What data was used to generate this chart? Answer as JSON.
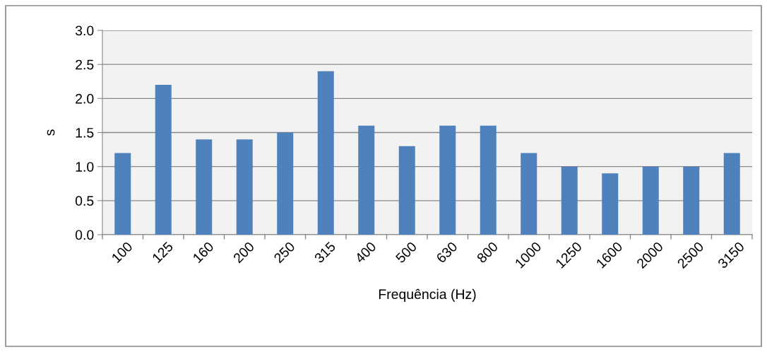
{
  "chart_data": {
    "type": "bar",
    "xlabel": "Frequência (Hz)",
    "ylabel": "s",
    "categories": [
      "100",
      "125",
      "160",
      "200",
      "250",
      "315",
      "400",
      "500",
      "630",
      "800",
      "1000",
      "1250",
      "1600",
      "2000",
      "2500",
      "3150"
    ],
    "values": [
      1.2,
      2.2,
      1.4,
      1.4,
      1.5,
      2.4,
      1.6,
      1.3,
      1.6,
      1.6,
      1.2,
      1.0,
      0.9,
      1.0,
      1.0,
      1.2
    ],
    "color": "#4f81bd",
    "ylim": [
      0,
      3.0
    ],
    "yticks": [
      {
        "value": 0,
        "label": "0.0"
      },
      {
        "value": 0.5,
        "label": "0.5"
      },
      {
        "value": 1.0,
        "label": "1.0"
      },
      {
        "value": 1.5,
        "label": "1.5"
      },
      {
        "value": 2.0,
        "label": "2.0"
      },
      {
        "value": 2.5,
        "label": "2.5"
      },
      {
        "value": 3.0,
        "label": "3.0"
      }
    ],
    "grid": "y"
  }
}
